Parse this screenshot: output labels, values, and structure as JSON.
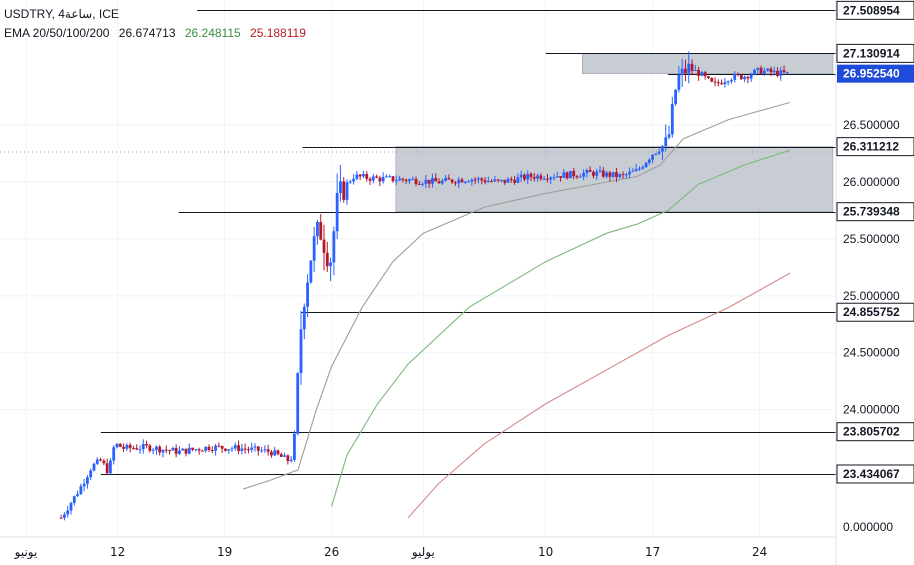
{
  "header": {
    "symbol_line": "USDTRY, 4ساعة, ICE",
    "ema_label": "EMA 20/50/100/200",
    "ema_values": [
      "26.674713",
      "26.248115",
      "25.188119"
    ]
  },
  "colors": {
    "up": "#2962ff",
    "down": "#b2182b",
    "ema20": "#9e9e9e",
    "ema50": "#7cb87c",
    "ema100": "#d08a8a",
    "zone": "#b5bcc6",
    "text": "#131722",
    "grid": "#f0f3fa",
    "price_tag_bg": "#1e4bd8",
    "ema20_text": "#131722",
    "ema50_text": "#388e3c",
    "ema100_text": "#b71c1c"
  },
  "chart_data": {
    "type": "candlestick",
    "title": "USDTRY, 4ساعة, ICE",
    "x_tick_labels": [
      {
        "label": "يونيو",
        "day": 6
      },
      {
        "label": "12",
        "day": 12
      },
      {
        "label": "19",
        "day": 19
      },
      {
        "label": "26",
        "day": 26
      },
      {
        "label": "يوليو",
        "day": 32
      },
      {
        "label": "10",
        "day": 40
      },
      {
        "label": "17",
        "day": 47
      },
      {
        "label": "24",
        "day": 54
      }
    ],
    "x_range_days": [
      4.3,
      59
    ],
    "y_range": [
      23.1,
      27.6
    ],
    "y_tick_labels": [
      "24.000000",
      "24.500000",
      "25.000000",
      "25.500000",
      "26.000000",
      "26.500000"
    ],
    "y_ticks": [
      24.0,
      24.5,
      25.0,
      25.5,
      26.0,
      26.5
    ],
    "bottom_label": "0.000000",
    "horizontal_levels": [
      {
        "value": 27.508954,
        "label": "27.508954",
        "from_day": 17.2
      },
      {
        "value": 27.130914,
        "label": "27.130914",
        "from_day": 40.0
      },
      {
        "value": 26.311212,
        "label": "26.311212",
        "from_day": 24.1
      },
      {
        "value": 25.739348,
        "label": "25.739348",
        "from_day": 16.0
      },
      {
        "value": 24.855752,
        "label": "24.855752",
        "from_day": 24.0
      },
      {
        "value": 23.805702,
        "label": "23.805702",
        "from_day": 10.9
      },
      {
        "value": 23.434067,
        "label": "23.434067",
        "from_day": 10.9
      }
    ],
    "current_price": {
      "value": 26.95254,
      "label": "26.952540"
    },
    "zones": [
      {
        "day_start": 30.2,
        "day_end": 58.8,
        "low": 25.739348,
        "high": 26.311212
      },
      {
        "day_start": 42.4,
        "day_end": 58.8,
        "low": 26.95254,
        "high": 27.130914
      }
    ],
    "price_path": [
      [
        8.3,
        23.05
      ],
      [
        9.5,
        23.3
      ],
      [
        10.3,
        23.5
      ],
      [
        10.9,
        23.55
      ],
      [
        11.4,
        23.45
      ],
      [
        11.8,
        23.7
      ],
      [
        12.4,
        23.66
      ],
      [
        14,
        23.67
      ],
      [
        16,
        23.63
      ],
      [
        18,
        23.67
      ],
      [
        20,
        23.66
      ],
      [
        22,
        23.63
      ],
      [
        23.2,
        23.55
      ],
      [
        23.5,
        23.6
      ],
      [
        23.9,
        24.6
      ],
      [
        24.2,
        25.0
      ],
      [
        24.7,
        25.4
      ],
      [
        25.2,
        25.6
      ],
      [
        25.9,
        25.3
      ],
      [
        26.4,
        25.85
      ],
      [
        26.8,
        25.95
      ],
      [
        27.4,
        26.05
      ],
      [
        29,
        26.03
      ],
      [
        31,
        26.02
      ],
      [
        33,
        26.0
      ],
      [
        35,
        26.03
      ],
      [
        37,
        26.0
      ],
      [
        39,
        26.05
      ],
      [
        41,
        26.06
      ],
      [
        43,
        26.08
      ],
      [
        45,
        26.05
      ],
      [
        46,
        26.1
      ],
      [
        47,
        26.25
      ],
      [
        48,
        26.35
      ],
      [
        48.6,
        26.9
      ],
      [
        49.3,
        27.0
      ],
      [
        50,
        26.96
      ],
      [
        51,
        26.85
      ],
      [
        52,
        26.92
      ],
      [
        53,
        26.93
      ],
      [
        54,
        26.98
      ],
      [
        55,
        26.96
      ],
      [
        56,
        26.95
      ]
    ],
    "ema20": [
      [
        20.2,
        23.3
      ],
      [
        22,
        23.38
      ],
      [
        23.8,
        23.47
      ],
      [
        25,
        24.0
      ],
      [
        26,
        24.38
      ],
      [
        28,
        24.9
      ],
      [
        30,
        25.3
      ],
      [
        32,
        25.55
      ],
      [
        36,
        25.78
      ],
      [
        40,
        25.9
      ],
      [
        44,
        26.0
      ],
      [
        46,
        26.05
      ],
      [
        47.5,
        26.15
      ],
      [
        49,
        26.38
      ],
      [
        52,
        26.55
      ],
      [
        56,
        26.7
      ]
    ],
    "ema50": [
      [
        26.0,
        23.15
      ],
      [
        27,
        23.6
      ],
      [
        29,
        24.05
      ],
      [
        31,
        24.4
      ],
      [
        35,
        24.9
      ],
      [
        40,
        25.3
      ],
      [
        44,
        25.55
      ],
      [
        46,
        25.63
      ],
      [
        48,
        25.75
      ],
      [
        50,
        25.98
      ],
      [
        53,
        26.15
      ],
      [
        56,
        26.28
      ]
    ],
    "ema100": [
      [
        31.0,
        23.05
      ],
      [
        33,
        23.35
      ],
      [
        36,
        23.7
      ],
      [
        40,
        24.05
      ],
      [
        44,
        24.35
      ],
      [
        48,
        24.65
      ],
      [
        52,
        24.9
      ],
      [
        56,
        25.2
      ]
    ]
  }
}
